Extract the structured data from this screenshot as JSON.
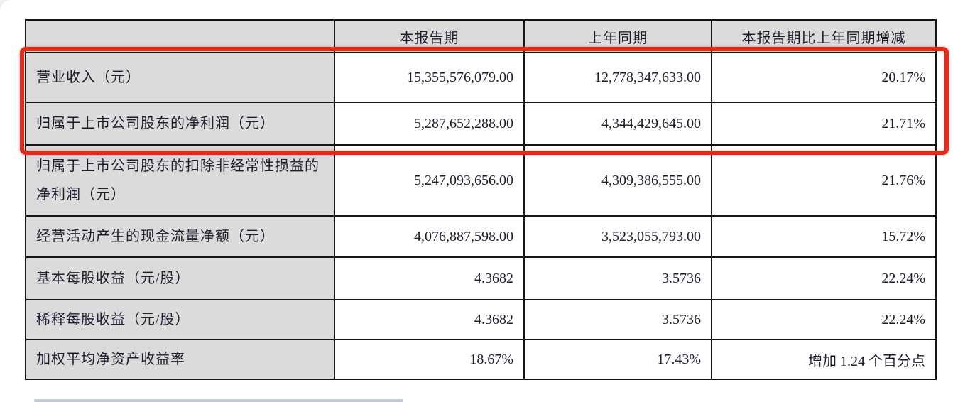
{
  "table": {
    "columns": {
      "metric": "",
      "current": "本报告期",
      "prior": "上年同期",
      "change": "本报告期比上年同期增减"
    },
    "rows": [
      {
        "label": "营业收入（元）",
        "current": "15,355,576,079.00",
        "prior": "12,778,347,633.00",
        "change": "20.17%"
      },
      {
        "label": "归属于上市公司股东的净利润（元）",
        "current": "5,287,652,288.00",
        "prior": "4,344,429,645.00",
        "change": "21.71%"
      },
      {
        "label": "归属于上市公司股东的扣除非经常性损益的净利润（元）",
        "current": "5,247,093,656.00",
        "prior": "4,309,386,555.00",
        "change": "21.76%"
      },
      {
        "label": "经营活动产生的现金流量净额（元）",
        "current": "4,076,887,598.00",
        "prior": "3,523,055,793.00",
        "change": "15.72%"
      },
      {
        "label": "基本每股收益（元/股）",
        "current": "4.3682",
        "prior": "3.5736",
        "change": "22.24%"
      },
      {
        "label": "稀释每股收益（元/股）",
        "current": "4.3682",
        "prior": "3.5736",
        "change": "22.24%"
      },
      {
        "label": "加权平均净资产收益率",
        "current": "18.67%",
        "prior": "17.43%",
        "change": "增加 1.24 个百分点"
      }
    ],
    "highlight": {
      "rows_covered": "营业收入、归属于上市公司股东的净利润",
      "color": "#e02a1e"
    }
  }
}
